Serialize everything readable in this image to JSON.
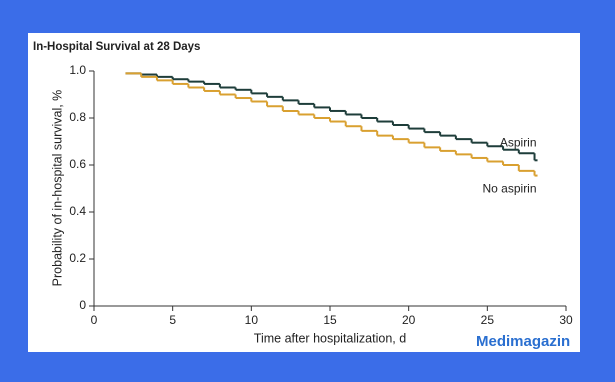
{
  "chart_data": {
    "type": "step",
    "title": "In-Hospital Survival at 28 Days",
    "x_label": "Time after hospitalization, d",
    "y_label": "Probability of in-hospital survival, %",
    "x": [
      2,
      3,
      4,
      5,
      6,
      7,
      8,
      9,
      10,
      11,
      12,
      13,
      14,
      15,
      16,
      17,
      18,
      19,
      20,
      21,
      22,
      23,
      24,
      25,
      26,
      27,
      28
    ],
    "series": [
      {
        "name": "Aspirin",
        "color": "#1e3d3a",
        "values": [
          0.99,
          0.985,
          0.975,
          0.965,
          0.955,
          0.945,
          0.93,
          0.92,
          0.905,
          0.89,
          0.875,
          0.86,
          0.845,
          0.83,
          0.815,
          0.8,
          0.785,
          0.77,
          0.755,
          0.74,
          0.725,
          0.71,
          0.695,
          0.68,
          0.665,
          0.65,
          0.62
        ]
      },
      {
        "name": "No aspirin",
        "color": "#d9a030",
        "values": [
          0.99,
          0.975,
          0.96,
          0.945,
          0.93,
          0.915,
          0.9,
          0.885,
          0.87,
          0.85,
          0.83,
          0.815,
          0.8,
          0.785,
          0.765,
          0.745,
          0.725,
          0.71,
          0.695,
          0.675,
          0.66,
          0.645,
          0.63,
          0.615,
          0.6,
          0.575,
          0.555
        ]
      }
    ],
    "xlim": [
      0,
      30
    ],
    "xticks": [
      0,
      5,
      10,
      15,
      20,
      25,
      30
    ],
    "ylim": [
      0,
      1
    ],
    "yticks": [
      0,
      0.2,
      0.4,
      0.6,
      0.8,
      {
        "value": 1,
        "label": "1.0"
      }
    ],
    "watermark": "Medimagazin"
  }
}
